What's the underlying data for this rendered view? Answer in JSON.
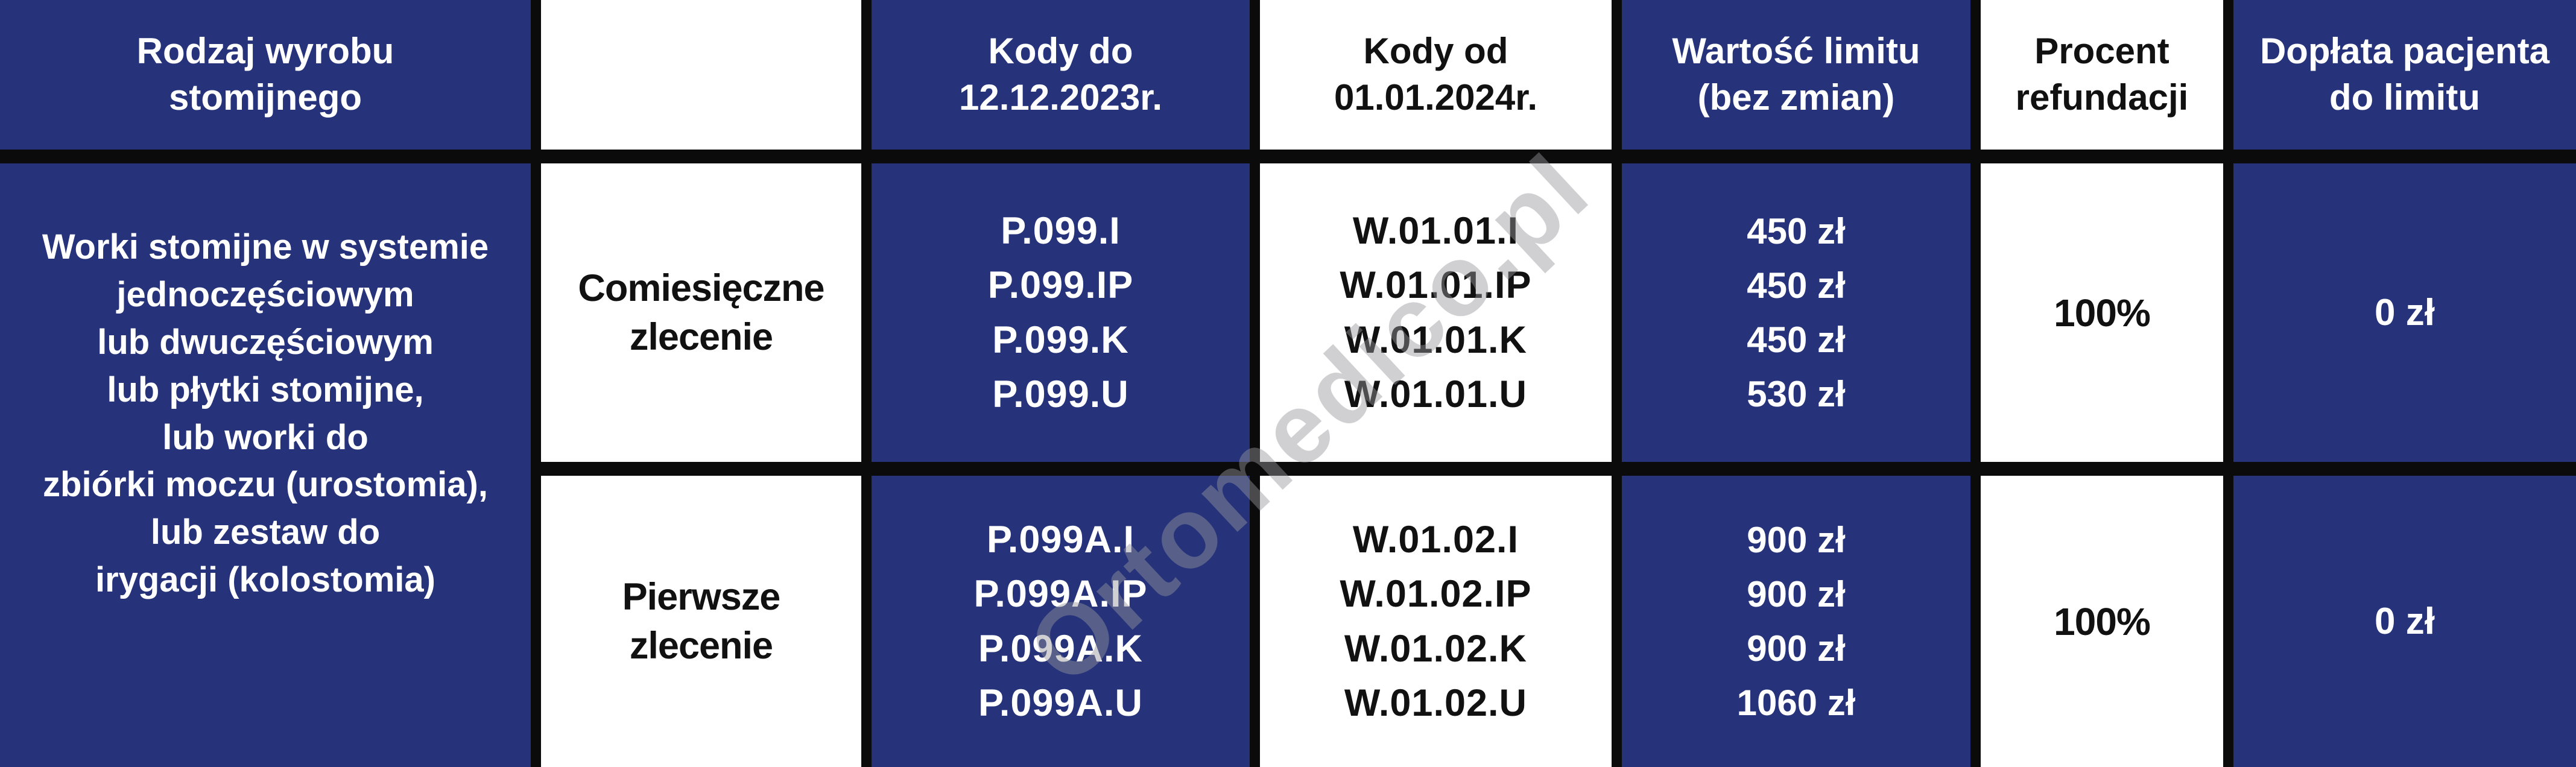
{
  "colors": {
    "navy": "#26337A",
    "border_black": "#0B0B0B",
    "cell_white": "#FFFFFF",
    "text_white": "#FFFFFF",
    "text_black": "#111111",
    "watermark_gray": "rgba(150,150,158,0.45)"
  },
  "watermark": "Ortomedico.pl",
  "header": {
    "product_type": "Rodzaj wyrobu\nstomijnego",
    "order_type": "",
    "codes_until": "Kody do\n12.12.2023r.",
    "codes_from": "Kody od\n01.01.2024r.",
    "limit_value": "Wartość limitu\n(bez zmian)",
    "refund_percent": "Procent\nrefundacji",
    "patient_surcharge": "Dopłata pacjenta\ndo limitu"
  },
  "product_group": "Worki stomijne w systemie\njednoczęściowym\nlub dwuczęściowym\nlub płytki stomijne,\nlub worki do\nzbiórki moczu (urostomia),\nlub zestaw do\nirygacji (kolostomia)",
  "rows": [
    {
      "order_type": "Comiesięczne\nzlecenie",
      "codes_until": [
        "P.099.I",
        "P.099.IP",
        "P.099.K",
        "P.099.U"
      ],
      "codes_from": [
        "W.01.01.I",
        "W.01.01.IP",
        "W.01.01.K",
        "W.01.01.U"
      ],
      "limit_values": [
        "450 zł",
        "450 zł",
        "450 zł",
        "530 zł"
      ],
      "refund_percent": "100%",
      "patient_surcharge": "0 zł"
    },
    {
      "order_type": "Pierwsze\nzlecenie",
      "codes_until": [
        "P.099A.I",
        "P.099A.IP",
        "P.099A.K",
        "P.099A.U"
      ],
      "codes_from": [
        "W.01.02.I",
        "W.01.02.IP",
        "W.01.02.K",
        "W.01.02.U"
      ],
      "limit_values": [
        "900 zł",
        "900 zł",
        "900 zł",
        "1060 zł"
      ],
      "refund_percent": "100%",
      "patient_surcharge": "0 zł"
    }
  ]
}
